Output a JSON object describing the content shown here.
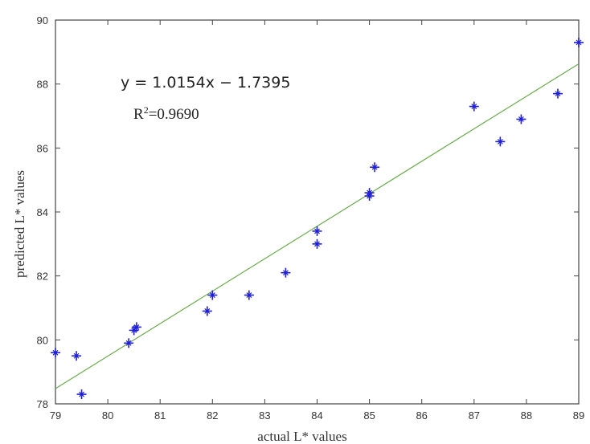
{
  "chart_data": {
    "type": "scatter",
    "title": "",
    "xlabel": "actual L* values",
    "ylabel": "predicted L* values",
    "xlim": [
      79,
      89
    ],
    "ylim": [
      78,
      90
    ],
    "x_ticks": [
      79,
      80,
      81,
      82,
      83,
      84,
      85,
      86,
      87,
      88,
      89
    ],
    "y_ticks": [
      78,
      80,
      82,
      84,
      86,
      88,
      90
    ],
    "grid": false,
    "marker": "star",
    "marker_color": "#1f1fd6",
    "fit_line_color": "#6aaa4c",
    "points": [
      {
        "x": 79.0,
        "y": 79.6
      },
      {
        "x": 79.4,
        "y": 79.5
      },
      {
        "x": 79.5,
        "y": 78.3
      },
      {
        "x": 80.4,
        "y": 79.9
      },
      {
        "x": 80.5,
        "y": 80.3
      },
      {
        "x": 80.55,
        "y": 80.4
      },
      {
        "x": 81.9,
        "y": 80.9
      },
      {
        "x": 82.0,
        "y": 81.4
      },
      {
        "x": 82.7,
        "y": 81.4
      },
      {
        "x": 83.4,
        "y": 82.1
      },
      {
        "x": 84.0,
        "y": 83.4
      },
      {
        "x": 84.0,
        "y": 83.0
      },
      {
        "x": 85.0,
        "y": 84.6
      },
      {
        "x": 85.0,
        "y": 84.5
      },
      {
        "x": 85.1,
        "y": 85.4
      },
      {
        "x": 87.0,
        "y": 87.3
      },
      {
        "x": 87.5,
        "y": 86.2
      },
      {
        "x": 87.9,
        "y": 86.9
      },
      {
        "x": 88.6,
        "y": 87.7
      },
      {
        "x": 89.0,
        "y": 89.3
      }
    ],
    "fit": {
      "slope": 1.0154,
      "intercept": -1.7395
    },
    "annotations": {
      "equation": "y = 1.0154x − 1.7395",
      "r2_prefix": "R",
      "r2_sup": "2",
      "r2_value": "=0.9690"
    }
  }
}
